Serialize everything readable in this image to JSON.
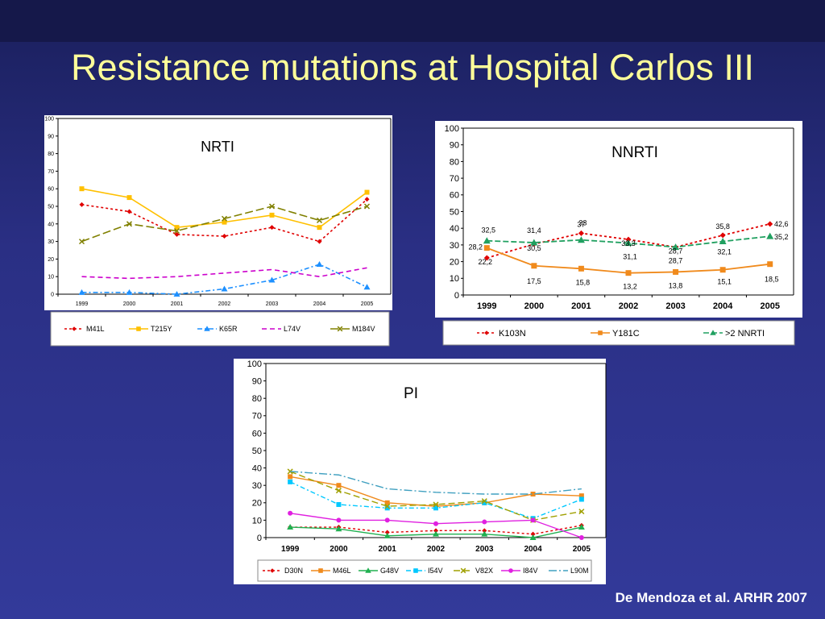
{
  "slide": {
    "title": "Resistance mutations at Hospital Carlos III",
    "citation": "De Mendoza et al. ARHR 2007"
  },
  "colors": {
    "background": "#2a2f84",
    "title": "#ffff99",
    "panel": "#ffffff"
  },
  "chart_data": [
    {
      "id": "nrti",
      "type": "line",
      "title": "NRTI",
      "categories": [
        "1999",
        "2000",
        "2001",
        "2002",
        "2003",
        "2004",
        "2005"
      ],
      "ylim": [
        0,
        100
      ],
      "yticks": [
        "0",
        "10",
        "20",
        "30",
        "40",
        "50",
        "60",
        "70",
        "80",
        "90",
        "100"
      ],
      "grid": false,
      "legend_position": "bottom",
      "series": [
        {
          "name": "M41L",
          "values": [
            51,
            47,
            34,
            33,
            38,
            30,
            54
          ],
          "color": "#e00000",
          "dash": "3,3",
          "marker": "diamond"
        },
        {
          "name": "T215Y",
          "values": [
            60,
            55,
            38,
            41,
            45,
            38,
            58
          ],
          "color": "#ffc000",
          "dash": "",
          "marker": "square"
        },
        {
          "name": "K65R",
          "values": [
            1,
            1,
            0,
            3,
            8,
            17,
            4
          ],
          "color": "#1e90ff",
          "dash": "6,3,2,3",
          "marker": "triangle"
        },
        {
          "name": "L74V",
          "values": [
            10,
            9,
            10,
            12,
            14,
            10,
            15
          ],
          "color": "#cc00cc",
          "dash": "6,4",
          "marker": "none"
        },
        {
          "name": "M184V",
          "values": [
            30,
            40,
            36,
            43,
            50,
            42,
            50
          ],
          "color": "#808000",
          "dash": "10,4",
          "marker": "x"
        }
      ]
    },
    {
      "id": "nnrti",
      "type": "line",
      "title": "NNRTI",
      "categories": [
        "1999",
        "2000",
        "2001",
        "2002",
        "2003",
        "2004",
        "2005"
      ],
      "ylim": [
        0,
        100
      ],
      "yticks": [
        "0",
        "10",
        "20",
        "30",
        "40",
        "50",
        "60",
        "70",
        "80",
        "90",
        "100"
      ],
      "grid": false,
      "legend_position": "bottom",
      "series": [
        {
          "name": "K103N",
          "values": [
            22.2,
            30.5,
            37,
            33.3,
            28.7,
            35.8,
            42.6
          ],
          "labels": [
            "22,2",
            "30,5",
            "37",
            "33,3",
            "28,7",
            "35,8",
            "42,6"
          ],
          "color": "#e00000",
          "dash": "3,3",
          "marker": "diamond"
        },
        {
          "name": "Y181C",
          "values": [
            28.2,
            17.5,
            15.8,
            13.2,
            13.8,
            15.1,
            18.5
          ],
          "labels": [
            "28,2",
            "17,5",
            "15,8",
            "13,2",
            "13,8",
            "15,1",
            "18,5"
          ],
          "color": "#f08a1c",
          "dash": "",
          "marker": "square"
        },
        {
          "name": ">2 NNRTI",
          "values": [
            32.5,
            31.4,
            33,
            31.1,
            28.7,
            32.1,
            35.2
          ],
          "labels": [
            "32,5",
            "31,4",
            "33",
            "31,1",
            "28,7",
            "32,1",
            "35,2"
          ],
          "color": "#20a060",
          "dash": "7,3",
          "marker": "triangle"
        }
      ]
    },
    {
      "id": "pi",
      "type": "line",
      "title": "PI",
      "categories": [
        "1999",
        "2000",
        "2001",
        "2002",
        "2003",
        "2004",
        "2005"
      ],
      "ylim": [
        0,
        100
      ],
      "yticks": [
        "0",
        "10",
        "20",
        "30",
        "40",
        "50",
        "60",
        "70",
        "80",
        "90",
        "100"
      ],
      "grid": false,
      "legend_position": "bottom",
      "series": [
        {
          "name": "D30N",
          "values": [
            6,
            6,
            3,
            4,
            4,
            2,
            7
          ],
          "color": "#e00000",
          "dash": "3,3",
          "marker": "diamond"
        },
        {
          "name": "M46L",
          "values": [
            35,
            30,
            20,
            18,
            20,
            25,
            24
          ],
          "color": "#f08a1c",
          "dash": "",
          "marker": "square"
        },
        {
          "name": "G48V",
          "values": [
            6,
            5,
            1,
            2,
            2,
            0,
            6
          ],
          "color": "#20b050",
          "dash": "",
          "marker": "triangle"
        },
        {
          "name": "I54V",
          "values": [
            32,
            19,
            17,
            17,
            20,
            11,
            22
          ],
          "color": "#00c8ff",
          "dash": "6,3,2,3",
          "marker": "square"
        },
        {
          "name": "V82X",
          "values": [
            38,
            27,
            18,
            19,
            21,
            10,
            15
          ],
          "color": "#a0a000",
          "dash": "8,4",
          "marker": "x"
        },
        {
          "name": "I84V",
          "values": [
            14,
            10,
            10,
            8,
            9,
            10,
            0
          ],
          "color": "#e020e0",
          "dash": "",
          "marker": "circle"
        },
        {
          "name": "L90M",
          "values": [
            38,
            36,
            28,
            26,
            25,
            25,
            28
          ],
          "color": "#40a0c0",
          "dash": "10,3,2,3",
          "marker": "none"
        }
      ]
    }
  ]
}
